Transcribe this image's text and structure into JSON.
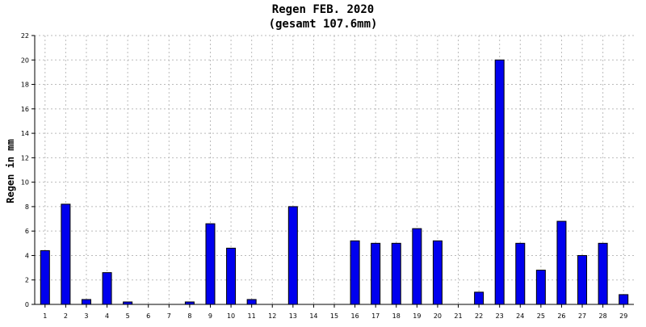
{
  "chart_data": {
    "type": "bar",
    "title": "Regen FEB. 2020",
    "subtitle": "(gesamt 107.6mm)",
    "xlabel": "",
    "ylabel": "Regen in mm",
    "ylim": [
      0,
      22
    ],
    "yticks": [
      "0",
      "2",
      "4",
      "6",
      "8",
      "10",
      "12",
      "14",
      "16",
      "18",
      "20",
      "22"
    ],
    "grid": true,
    "categories": [
      "1",
      "2",
      "3",
      "4",
      "5",
      "6",
      "7",
      "8",
      "9",
      "10",
      "11",
      "12",
      "13",
      "14",
      "15",
      "16",
      "17",
      "18",
      "19",
      "20",
      "21",
      "22",
      "23",
      "24",
      "25",
      "26",
      "27",
      "28",
      "29"
    ],
    "values": [
      4.4,
      8.2,
      0.4,
      2.6,
      0.2,
      0,
      0,
      0.2,
      6.6,
      4.6,
      0.4,
      0,
      8.0,
      0,
      0,
      5.2,
      5.0,
      5.0,
      6.2,
      5.2,
      0,
      1.0,
      20.0,
      5.0,
      2.8,
      6.8,
      4.0,
      5.0,
      0.8
    ],
    "colors": {
      "bar": "#0000ee",
      "bar_outline": "#000000",
      "grid": "#bbbbbb",
      "axis": "#000000"
    }
  }
}
